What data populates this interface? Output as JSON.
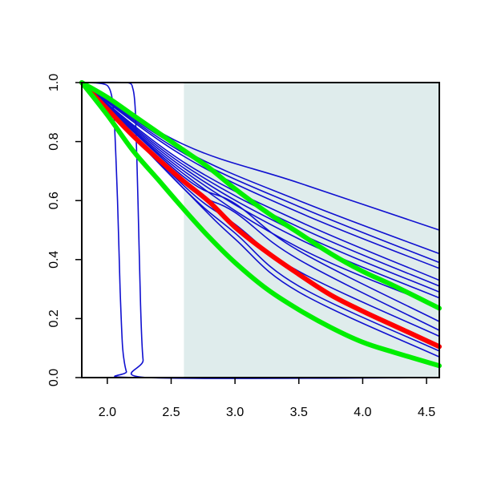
{
  "chart_data": {
    "type": "line",
    "title": "",
    "xlabel": "",
    "ylabel": "",
    "xlim": [
      1.8,
      4.6
    ],
    "ylim": [
      0,
      1
    ],
    "x_ticks": [
      "2.0",
      "2.5",
      "3.0",
      "3.5",
      "4.0",
      "4.5"
    ],
    "y_ticks": [
      "0.0",
      "0.2",
      "0.4",
      "0.6",
      "0.8",
      "1.0"
    ],
    "grid": false,
    "legend": "none",
    "shaded_region": {
      "x_from": 2.6,
      "x_to": 4.6,
      "color": "#dfecec"
    },
    "series": [
      {
        "color": "#1010d0",
        "width": "thin",
        "kind": "step",
        "x": [
          1.8,
          2.0,
          2.05,
          2.08,
          2.1,
          2.12,
          2.15,
          2.2,
          4.6
        ],
        "y": [
          1.0,
          0.99,
          0.9,
          0.6,
          0.3,
          0.1,
          0.02,
          0.0,
          0.0
        ]
      },
      {
        "color": "#1010d0",
        "width": "thin",
        "kind": "step",
        "x": [
          1.8,
          2.15,
          2.2,
          2.22,
          2.24,
          2.26,
          2.28,
          2.32,
          4.6
        ],
        "y": [
          1.0,
          1.0,
          0.98,
          0.9,
          0.6,
          0.25,
          0.06,
          0.0,
          0.0
        ]
      },
      {
        "color": "#1010d0",
        "width": "thin",
        "x": [
          1.8,
          2.6,
          3.5,
          4.6
        ],
        "y": [
          1.0,
          0.79,
          0.66,
          0.5
        ]
      },
      {
        "color": "#1010d0",
        "width": "thin",
        "x": [
          1.8,
          2.6,
          3.5,
          4.6
        ],
        "y": [
          1.0,
          0.77,
          0.6,
          0.42
        ]
      },
      {
        "color": "#1010d0",
        "width": "thin",
        "x": [
          1.8,
          2.6,
          3.5,
          4.6
        ],
        "y": [
          1.0,
          0.76,
          0.58,
          0.39
        ]
      },
      {
        "color": "#1010d0",
        "width": "thin",
        "x": [
          1.8,
          2.6,
          3.5,
          4.6
        ],
        "y": [
          1.0,
          0.75,
          0.56,
          0.37
        ]
      },
      {
        "color": "#1010d0",
        "width": "thin",
        "x": [
          1.8,
          2.6,
          3.5,
          4.6
        ],
        "y": [
          1.0,
          0.73,
          0.53,
          0.33
        ]
      },
      {
        "color": "#1010d0",
        "width": "thin",
        "x": [
          1.8,
          2.6,
          3.5,
          4.6
        ],
        "y": [
          1.0,
          0.72,
          0.51,
          0.31
        ]
      },
      {
        "color": "#1010d0",
        "width": "thin",
        "x": [
          1.8,
          2.6,
          3.5,
          4.6
        ],
        "y": [
          1.0,
          0.71,
          0.49,
          0.29
        ]
      },
      {
        "color": "#1010d0",
        "width": "thin",
        "x": [
          1.8,
          2.6,
          3.5,
          4.6
        ],
        "y": [
          1.0,
          0.7,
          0.47,
          0.27
        ]
      },
      {
        "color": "#1010d0",
        "width": "thin",
        "x": [
          1.8,
          2.6,
          3.5,
          4.6
        ],
        "y": [
          1.0,
          0.69,
          0.44,
          0.24
        ]
      },
      {
        "color": "#1010d0",
        "width": "thin",
        "x": [
          1.8,
          2.6,
          3.0,
          3.5,
          4.6
        ],
        "y": [
          1.0,
          0.68,
          0.59,
          0.43,
          0.19
        ]
      },
      {
        "color": "#1010d0",
        "width": "thin",
        "x": [
          1.8,
          2.6,
          3.0,
          3.5,
          4.6
        ],
        "y": [
          1.0,
          0.66,
          0.56,
          0.4,
          0.16
        ]
      },
      {
        "color": "#1010d0",
        "width": "thin",
        "x": [
          1.8,
          2.6,
          3.0,
          3.5,
          4.6
        ],
        "y": [
          1.0,
          0.65,
          0.52,
          0.36,
          0.14
        ]
      },
      {
        "color": "#1010d0",
        "width": "thin",
        "x": [
          1.8,
          2.6,
          3.0,
          3.5,
          4.6
        ],
        "y": [
          1.0,
          0.64,
          0.49,
          0.31,
          0.09
        ]
      },
      {
        "color": "#1010d0",
        "width": "thin",
        "x": [
          1.8,
          2.6,
          3.0,
          3.5,
          4.6
        ],
        "y": [
          1.0,
          0.64,
          0.47,
          0.29,
          0.07
        ]
      },
      {
        "color": "#ff0000",
        "width": "thick",
        "x": [
          1.8,
          2.0,
          2.2,
          2.4,
          2.6,
          2.8,
          3.0,
          3.25,
          3.5,
          3.75,
          4.0,
          4.25,
          4.6
        ],
        "y": [
          1.0,
          0.91,
          0.82,
          0.74,
          0.665,
          0.595,
          0.51,
          0.425,
          0.35,
          0.28,
          0.225,
          0.175,
          0.105
        ]
      },
      {
        "color": "#00ee00",
        "width": "thick",
        "x": [
          1.8,
          2.0,
          2.2,
          2.4,
          2.6,
          2.8,
          3.0,
          3.25,
          3.5,
          3.75,
          4.0,
          4.25,
          4.6
        ],
        "y": [
          1.0,
          0.95,
          0.89,
          0.83,
          0.77,
          0.71,
          0.64,
          0.56,
          0.49,
          0.42,
          0.36,
          0.31,
          0.235
        ]
      },
      {
        "color": "#00ee00",
        "width": "thick",
        "x": [
          1.8,
          2.0,
          2.2,
          2.4,
          2.6,
          2.8,
          3.0,
          3.25,
          3.5,
          3.75,
          4.0,
          4.25,
          4.6
        ],
        "y": [
          1.0,
          0.89,
          0.77,
          0.67,
          0.57,
          0.475,
          0.39,
          0.3,
          0.23,
          0.17,
          0.12,
          0.085,
          0.04
        ]
      }
    ]
  }
}
